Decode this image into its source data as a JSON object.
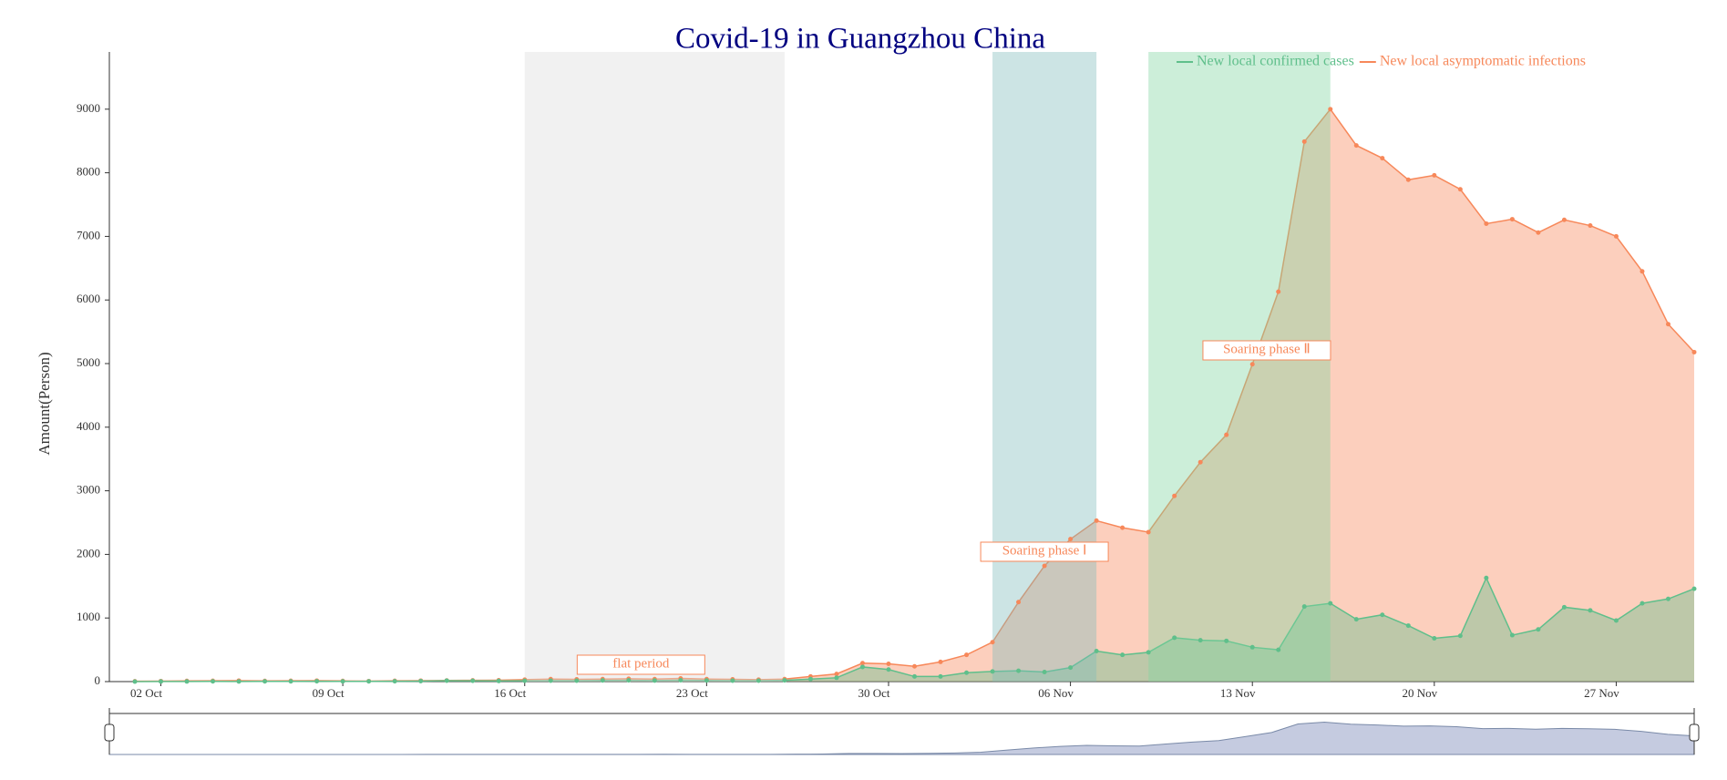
{
  "chart_data": {
    "type": "line",
    "title": "Covid-19 in Guangzhou China",
    "y_label": "Amount(Person)",
    "categories": [
      null,
      "02 Oct",
      null,
      null,
      null,
      null,
      null,
      null,
      "09 Oct",
      null,
      null,
      null,
      null,
      null,
      null,
      "16 Oct",
      null,
      null,
      null,
      null,
      null,
      null,
      "23 Oct",
      null,
      null,
      null,
      null,
      null,
      null,
      "30 Oct",
      null,
      null,
      null,
      null,
      null,
      null,
      "06 Nov",
      null,
      null,
      null,
      null,
      null,
      null,
      "13 Nov",
      null,
      null,
      null,
      null,
      null,
      null,
      "20 Nov",
      null,
      null,
      null,
      null,
      null,
      null,
      "27 Nov",
      null,
      null,
      null
    ],
    "series": [
      {
        "name": "New local confirmed cases",
        "color": "#5fbf8b",
        "area": true,
        "values": [
          0,
          1,
          2,
          3,
          2,
          4,
          3,
          5,
          4,
          3,
          6,
          8,
          15,
          12,
          10,
          12,
          15,
          14,
          18,
          20,
          16,
          22,
          18,
          15,
          14,
          20,
          40,
          60,
          230,
          190,
          80,
          80,
          140,
          160,
          170,
          150,
          220,
          480,
          420,
          460,
          690,
          650,
          640,
          540,
          500,
          1180,
          1230,
          980,
          1050,
          880,
          680,
          720,
          1630,
          730,
          820,
          1170,
          1120,
          960,
          1230,
          1300,
          1460
        ]
      },
      {
        "name": "New local asymptomatic infections",
        "color": "#f7885a",
        "area": true,
        "values": [
          5,
          8,
          10,
          12,
          15,
          10,
          12,
          15,
          10,
          8,
          12,
          15,
          18,
          20,
          22,
          30,
          40,
          35,
          40,
          45,
          40,
          50,
          40,
          35,
          30,
          40,
          80,
          120,
          290,
          280,
          240,
          310,
          420,
          620,
          1250,
          1820,
          2240,
          2530,
          2420,
          2350,
          2920,
          3450,
          3880,
          4990,
          6130,
          8490,
          9000,
          8430,
          8230,
          7890,
          7960,
          7740,
          7200,
          7270,
          7060,
          7260,
          7170,
          7000,
          6450,
          5620,
          5180
        ]
      }
    ],
    "ylim": [
      0,
      9900
    ],
    "yticks": [
      0,
      1000,
      2000,
      3000,
      4000,
      5000,
      6000,
      7000,
      8000,
      9000
    ],
    "legend": "top-right",
    "mark_areas": [
      {
        "label": "flat period",
        "from": 15,
        "to": 25,
        "color": "#dcdcdc"
      },
      {
        "label": "Soaring phase  Ⅰ",
        "from": 33,
        "to": 37,
        "color": "#7fbcbc"
      },
      {
        "label": "Soaring phase  Ⅱ",
        "from": 39,
        "to": 46,
        "color": "#7fd4a0"
      }
    ]
  }
}
